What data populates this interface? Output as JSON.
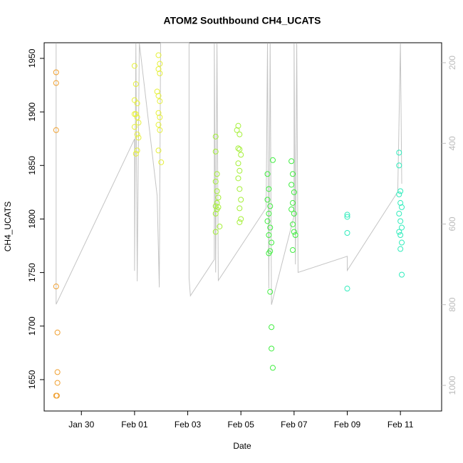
{
  "chart_data": {
    "type": "scatter",
    "title": "ATOM2 Southbound CH4_UCATS",
    "x_label": "Date",
    "y_label": "CH4_UCATS",
    "xlim": [
      28.6,
      43.55
    ],
    "ylim": [
      1620.7,
      1964.6
    ],
    "y2lim": [
      1063.6,
      150.5
    ],
    "xticks": [
      {
        "value": 30,
        "label": "Jan 30"
      },
      {
        "value": 32,
        "label": "Feb 01"
      },
      {
        "value": 34,
        "label": "Feb 03"
      },
      {
        "value": 36,
        "label": "Feb 05"
      },
      {
        "value": 38,
        "label": "Feb 07"
      },
      {
        "value": 40,
        "label": "Feb 09"
      },
      {
        "value": 42,
        "label": "Feb 11"
      }
    ],
    "yticks": [
      1650,
      1700,
      1750,
      1800,
      1850,
      1900,
      1950
    ],
    "y2ticks": [
      200,
      400,
      600,
      800,
      1000
    ],
    "series": [
      {
        "type": "line",
        "axis": "y2",
        "color": "#c4c4c4",
        "x": [
          29.05,
          29.05,
          32.0,
          32.0,
          32.05,
          32.1,
          32.18,
          32.85,
          32.93,
          32.98,
          33.8,
          34.05,
          34.05,
          34.1,
          35.0,
          35.0,
          35.05,
          35.1,
          35.15,
          36.95,
          37.0,
          37.05,
          37.1,
          37.15,
          38.0,
          38.0,
          38.05,
          38.1,
          38.15,
          40.0,
          40.0,
          41.9,
          42.0,
          42.05
        ],
        "values": [
          151,
          799,
          389,
          716,
          151,
          742,
          151,
          530,
          757,
          151,
          151,
          151,
          734,
          778,
          688,
          151,
          720,
          151,
          740,
          560,
          151,
          760,
          151,
          800,
          580,
          151,
          700,
          151,
          720,
          680,
          715,
          520,
          151,
          500
        ]
      },
      {
        "type": "scatter",
        "color": "#f0a030",
        "x": [
          29.05,
          29.05,
          29.05,
          29.05,
          29.1,
          29.1,
          29.1,
          29.05,
          29.08
        ],
        "values": [
          1937,
          1927,
          1883,
          1737,
          1694,
          1657,
          1647,
          1635,
          1635
        ]
      },
      {
        "type": "scatter",
        "color": "#e6f03a",
        "x": [
          32.0,
          32.05,
          32.0,
          32.1,
          32.0,
          32.05,
          32.1,
          32.15,
          32.0,
          32.1,
          32.15,
          32.1,
          32.05,
          32.9,
          32.95,
          32.9,
          32.95,
          32.85,
          32.9,
          32.95,
          32.9,
          32.95,
          32.9,
          32.95,
          32.9,
          33.0
        ],
        "values": [
          1943,
          1926,
          1911,
          1908,
          1898,
          1898,
          1895,
          1890,
          1886,
          1879,
          1876,
          1864,
          1861,
          1953,
          1945,
          1940,
          1936,
          1919,
          1915,
          1910,
          1899,
          1895,
          1888,
          1883,
          1864,
          1853
        ]
      },
      {
        "type": "scatter",
        "color": "#a6f03a",
        "x": [
          35.05,
          35.05,
          35.1,
          35.05,
          35.1,
          35.15,
          35.1,
          35.05,
          35.15,
          35.1,
          35.05,
          35.2,
          35.05,
          35.9,
          35.85,
          35.95,
          35.9,
          35.95,
          36.0,
          35.9,
          35.95,
          35.9,
          35.95,
          36.0,
          35.95,
          36.0,
          35.95
        ],
        "values": [
          1877,
          1863,
          1842,
          1835,
          1826,
          1820,
          1815,
          1812,
          1811,
          1809,
          1805,
          1793,
          1788,
          1887,
          1883,
          1879,
          1866,
          1865,
          1860,
          1852,
          1845,
          1838,
          1828,
          1818,
          1810,
          1800,
          1797
        ]
      },
      {
        "type": "scatter",
        "color": "#40ee40",
        "x": [
          37.0,
          37.05,
          37.0,
          37.1,
          37.05,
          37.0,
          37.1,
          37.05,
          37.15,
          37.1,
          37.05,
          37.1,
          37.15,
          37.15,
          37.2,
          37.2,
          37.9,
          37.95,
          37.9,
          38.0,
          37.95,
          37.9,
          38.0,
          37.95,
          38.0,
          38.05,
          37.95
        ],
        "values": [
          1842,
          1828,
          1818,
          1812,
          1805,
          1798,
          1792,
          1785,
          1778,
          1770,
          1768,
          1732,
          1699,
          1679,
          1661,
          1855,
          1854,
          1842,
          1832,
          1825,
          1815,
          1809,
          1805,
          1795,
          1788,
          1785,
          1771
        ]
      },
      {
        "type": "scatter",
        "color": "#30ecbc",
        "x": [
          40.0,
          40.0,
          40.0,
          40.0,
          41.95,
          41.95,
          42.0,
          41.95,
          42.0,
          42.05,
          41.95,
          42.0,
          42.05,
          41.95,
          42.0,
          42.05,
          42.0,
          42.05
        ],
        "values": [
          1804,
          1802,
          1787,
          1735,
          1862,
          1850,
          1826,
          1823,
          1815,
          1811,
          1805,
          1798,
          1792,
          1788,
          1785,
          1778,
          1772,
          1748
        ]
      }
    ]
  }
}
